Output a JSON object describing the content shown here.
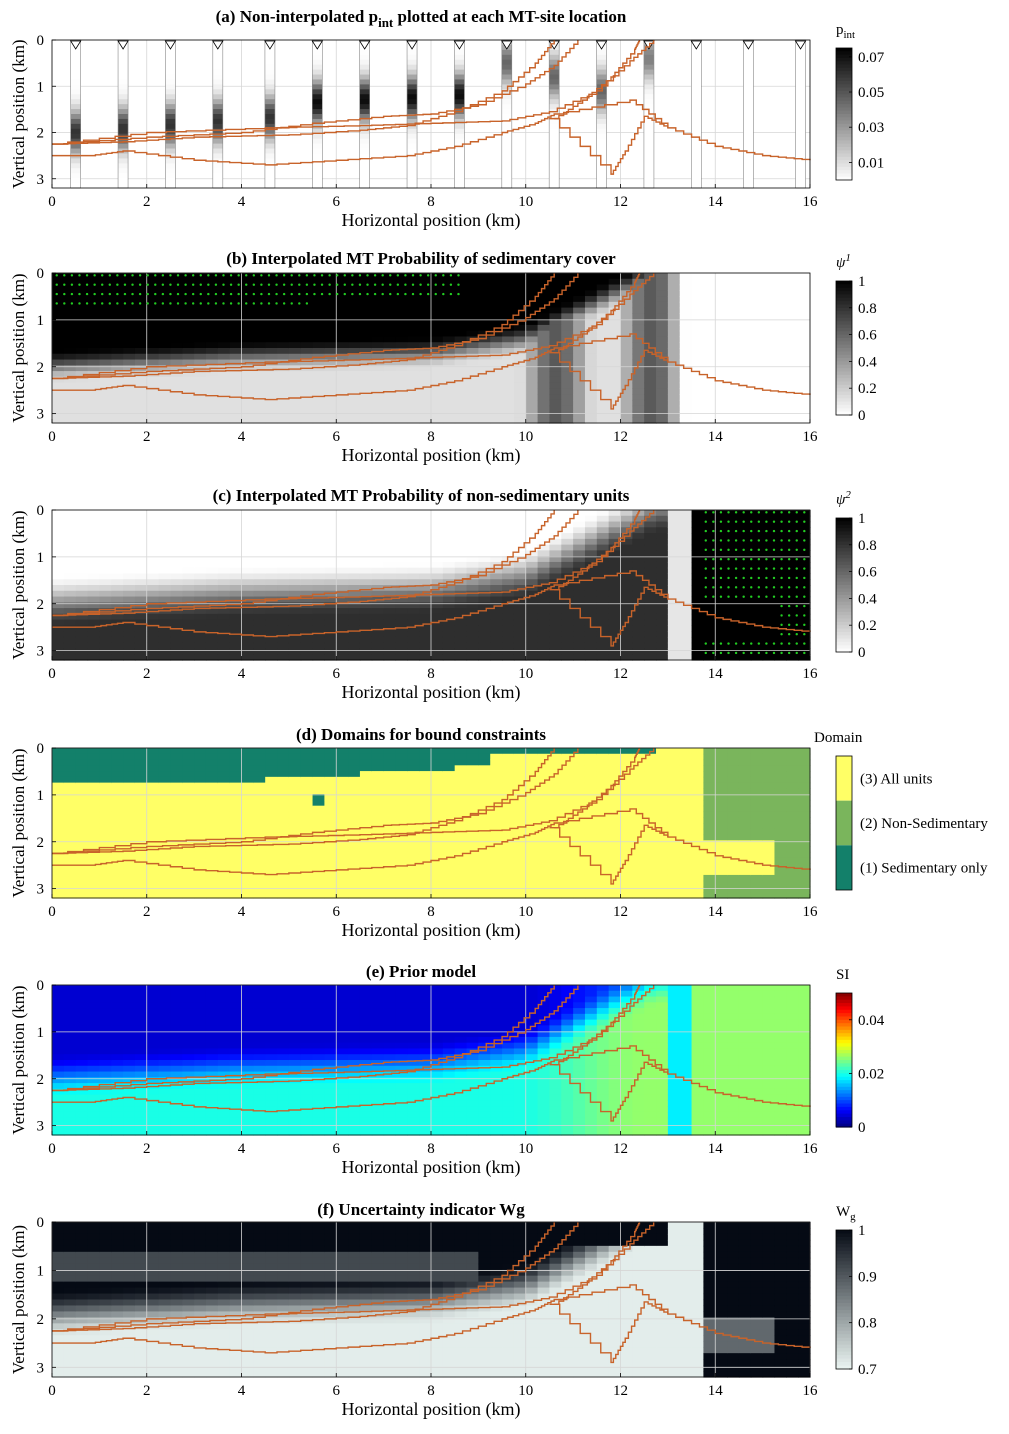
{
  "colors": {
    "boundary": "#c8632a",
    "grid": "#d6d6d6",
    "green_marker": "#22cc22",
    "domain_sed": "#13806a",
    "domain_nonsed": "#7ab55c",
    "domain_all": "#ffff66"
  },
  "common": {
    "xlabel": "Horizontal position (km)",
    "ylabel": "Vertical position (km)",
    "xticks": [
      "0",
      "2",
      "4",
      "6",
      "8",
      "10",
      "12",
      "14",
      "16"
    ],
    "yticks": [
      "0",
      "1",
      "2",
      "3"
    ]
  },
  "boundaries": [
    [
      [
        0,
        2.5
      ],
      [
        0.8,
        2.5
      ],
      [
        1.5,
        2.4
      ],
      [
        3.0,
        2.6
      ],
      [
        4.5,
        2.7
      ],
      [
        6.0,
        2.6
      ],
      [
        7.5,
        2.5
      ],
      [
        8.5,
        2.3
      ],
      [
        9.5,
        2.0
      ],
      [
        10.2,
        1.8
      ],
      [
        10.6,
        1.6
      ],
      [
        12.2,
        1.3
      ],
      [
        13.0,
        1.9
      ],
      [
        14.0,
        2.3
      ],
      [
        15.0,
        2.5
      ],
      [
        16,
        2.6
      ]
    ],
    [
      [
        0,
        2.25
      ],
      [
        1.5,
        2.2
      ],
      [
        3.0,
        2.1
      ],
      [
        5.0,
        2.05
      ],
      [
        6.5,
        1.95
      ],
      [
        7.5,
        1.85
      ],
      [
        8.5,
        1.55
      ],
      [
        9.5,
        1.1
      ],
      [
        10.2,
        0.5
      ],
      [
        10.6,
        0.0
      ]
    ],
    [
      [
        0,
        2.25
      ],
      [
        2.0,
        2.1
      ],
      [
        4.0,
        2.0
      ],
      [
        5.5,
        1.8
      ],
      [
        7.0,
        1.65
      ],
      [
        8.0,
        1.6
      ],
      [
        9.0,
        1.4
      ],
      [
        10.0,
        0.95
      ],
      [
        10.6,
        0.55
      ],
      [
        11.1,
        0.0
      ]
    ],
    [
      [
        0,
        2.25
      ],
      [
        2.0,
        2.0
      ],
      [
        4.5,
        1.9
      ],
      [
        6.5,
        1.85
      ],
      [
        8.0,
        1.8
      ],
      [
        9.5,
        1.75
      ],
      [
        10.5,
        1.55
      ],
      [
        11.5,
        1.1
      ],
      [
        12.2,
        0.45
      ],
      [
        12.7,
        0.0
      ]
    ],
    [
      [
        10.5,
        1.7
      ],
      [
        11.8,
        2.9
      ],
      [
        12.1,
        2.4
      ],
      [
        12.5,
        1.65
      ],
      [
        13.0,
        1.9
      ]
    ],
    [
      [
        10.6,
        1.7
      ],
      [
        11.2,
        1.3
      ],
      [
        11.8,
        0.8
      ],
      [
        12.3,
        0.2
      ],
      [
        12.4,
        0.0
      ]
    ]
  ],
  "panels": [
    {
      "id": "a",
      "title": "(a) Non-interpolated p",
      "title_sub": "int",
      "title_tail": " plotted at each MT-site location",
      "colorbar": {
        "label": "p",
        "label_sub": "int",
        "ticks": [
          "0.07",
          "0.05",
          "0.03",
          "0.01"
        ],
        "scale": "gray",
        "range": [
          0,
          0.075
        ]
      }
    },
    {
      "id": "b",
      "title": "(b) Interpolated MT Probability of sedimentary cover",
      "colorbar": {
        "label": "ψ",
        "label_sup": "1",
        "ticks": [
          "1",
          "0.8",
          "0.6",
          "0.4",
          "0.2",
          "0"
        ],
        "scale": "gray",
        "range": [
          0,
          1
        ]
      }
    },
    {
      "id": "c",
      "title": "(c) Interpolated MT Probability of non-sedimentary units",
      "colorbar": {
        "label": "ψ",
        "label_sup": "2",
        "ticks": [
          "1",
          "0.8",
          "0.6",
          "0.4",
          "0.2",
          "0"
        ],
        "scale": "gray",
        "range": [
          0,
          1
        ]
      }
    },
    {
      "id": "d",
      "title": "(d) Domains for bound constraints",
      "colorbar": {
        "label": "Domain",
        "ticks": [
          "(3) All units",
          "(2) Non-Sedimentary",
          "(1) Sedimentary only"
        ],
        "scale": "categorical"
      }
    },
    {
      "id": "e",
      "title": "(e) Prior model",
      "colorbar": {
        "label": "SI",
        "ticks": [
          "0.04",
          "0.02",
          "0"
        ],
        "scale": "jet",
        "range": [
          0,
          0.05
        ]
      }
    },
    {
      "id": "f",
      "title": "(f) Uncertainty indicator Wg",
      "colorbar": {
        "label": "W",
        "label_sub": "g",
        "ticks": [
          "1",
          "0.9",
          "0.8",
          "0.7"
        ],
        "scale": "bone",
        "range": [
          0.7,
          1
        ]
      }
    }
  ],
  "chart_data": [
    {
      "type": "heatmap",
      "title": "(a) Non-interpolated p_int plotted at each MT-site location",
      "xlabel": "Horizontal position (km)",
      "ylabel": "Vertical position (km)",
      "xlim": [
        0,
        16
      ],
      "ylim": [
        3.2,
        0
      ],
      "mt_sites_km": [
        0.5,
        1.5,
        2.5,
        3.5,
        4.6,
        5.6,
        6.6,
        7.6,
        8.6,
        9.6,
        10.6,
        11.6,
        12.6,
        13.6,
        14.7,
        15.8
      ],
      "colorbar": {
        "label": "p_int",
        "range": [
          0,
          0.075
        ]
      }
    },
    {
      "type": "heatmap",
      "title": "(b) Interpolated MT Probability of sedimentary cover",
      "xlabel": "Horizontal position (km)",
      "ylabel": "Vertical position (km)",
      "xlim": [
        0,
        16
      ],
      "ylim": [
        3.2,
        0
      ],
      "colorbar": {
        "label": "ψ^1",
        "range": [
          0,
          1
        ]
      }
    },
    {
      "type": "heatmap",
      "title": "(c) Interpolated MT Probability of non-sedimentary units",
      "xlabel": "Horizontal position (km)",
      "ylabel": "Vertical position (km)",
      "xlim": [
        0,
        16
      ],
      "ylim": [
        3.2,
        0
      ],
      "colorbar": {
        "label": "ψ^2",
        "range": [
          0,
          1
        ]
      }
    },
    {
      "type": "heatmap",
      "title": "(d) Domains for bound constraints",
      "xlabel": "Horizontal position (km)",
      "ylabel": "Vertical position (km)",
      "xlim": [
        0,
        16
      ],
      "ylim": [
        3.2,
        0
      ],
      "categories": [
        "(3) All units",
        "(2) Non-Sedimentary",
        "(1) Sedimentary only"
      ]
    },
    {
      "type": "heatmap",
      "title": "(e) Prior model",
      "xlabel": "Horizontal position (km)",
      "ylabel": "Vertical position (km)",
      "xlim": [
        0,
        16
      ],
      "ylim": [
        3.2,
        0
      ],
      "colorbar": {
        "label": "SI",
        "range": [
          0,
          0.05
        ]
      }
    },
    {
      "type": "heatmap",
      "title": "(f) Uncertainty indicator Wg",
      "xlabel": "Horizontal position (km)",
      "ylabel": "Vertical position (km)",
      "xlim": [
        0,
        16
      ],
      "ylim": [
        3.2,
        0
      ],
      "colorbar": {
        "label": "W_g",
        "range": [
          0.7,
          1
        ]
      }
    }
  ]
}
